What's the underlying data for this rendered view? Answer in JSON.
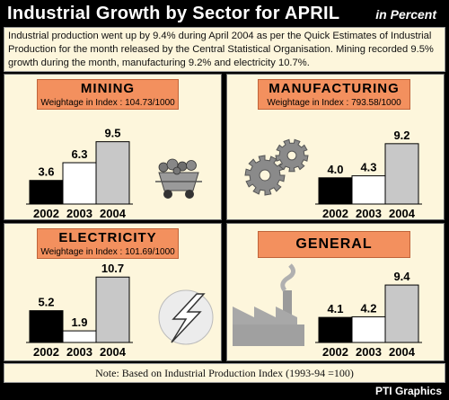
{
  "header": {
    "title": "Industrial Growth by Sector for  APRIL",
    "unit": "in Percent"
  },
  "intro": "Industrial production went up by 9.4% during April 2004 as per the Quick Estimates of Industrial Production for the month released by the Central Statistical Organisation. Mining recorded 9.5% growth during the month, manufacturing 9.2% and electricity 10.7%.",
  "note": "Note: Based on Industrial Production Index (1993-94 =100)",
  "credit": "PTI Graphics",
  "colors": {
    "background": "#fdf6dc",
    "label": "#f3905e",
    "bar_2002": "#000000",
    "bar_2003": "#ffffff",
    "bar_2004": "#c8c8c8"
  },
  "icons": [
    "mine-cart-icon",
    "gears-icon",
    "lightning-bolt-icon",
    "factory-icon"
  ],
  "chart_data": [
    {
      "type": "bar",
      "title": "MINING",
      "subtitle": "Weightage in Index : 104.73/1000",
      "categories": [
        "2002",
        "2003",
        "2004"
      ],
      "values": [
        3.6,
        6.3,
        9.5
      ],
      "ylim": [
        0,
        11
      ],
      "grid": false
    },
    {
      "type": "bar",
      "title": "MANUFACTURING",
      "subtitle": "Weightage in Index : 793.58/1000",
      "categories": [
        "2002",
        "2003",
        "2004"
      ],
      "values": [
        4.0,
        4.3,
        9.2
      ],
      "ylim": [
        0,
        11
      ],
      "grid": false
    },
    {
      "type": "bar",
      "title": "ELECTRICITY",
      "subtitle": "Weightage in Index : 101.69/1000",
      "categories": [
        "2002",
        "2003",
        "2004"
      ],
      "values": [
        5.2,
        1.9,
        10.7
      ],
      "ylim": [
        0,
        11
      ],
      "grid": false
    },
    {
      "type": "bar",
      "title": "GENERAL",
      "subtitle": "",
      "categories": [
        "2002",
        "2003",
        "2004"
      ],
      "values": [
        4.1,
        4.2,
        9.4
      ],
      "ylim": [
        0,
        11
      ],
      "grid": false
    }
  ]
}
